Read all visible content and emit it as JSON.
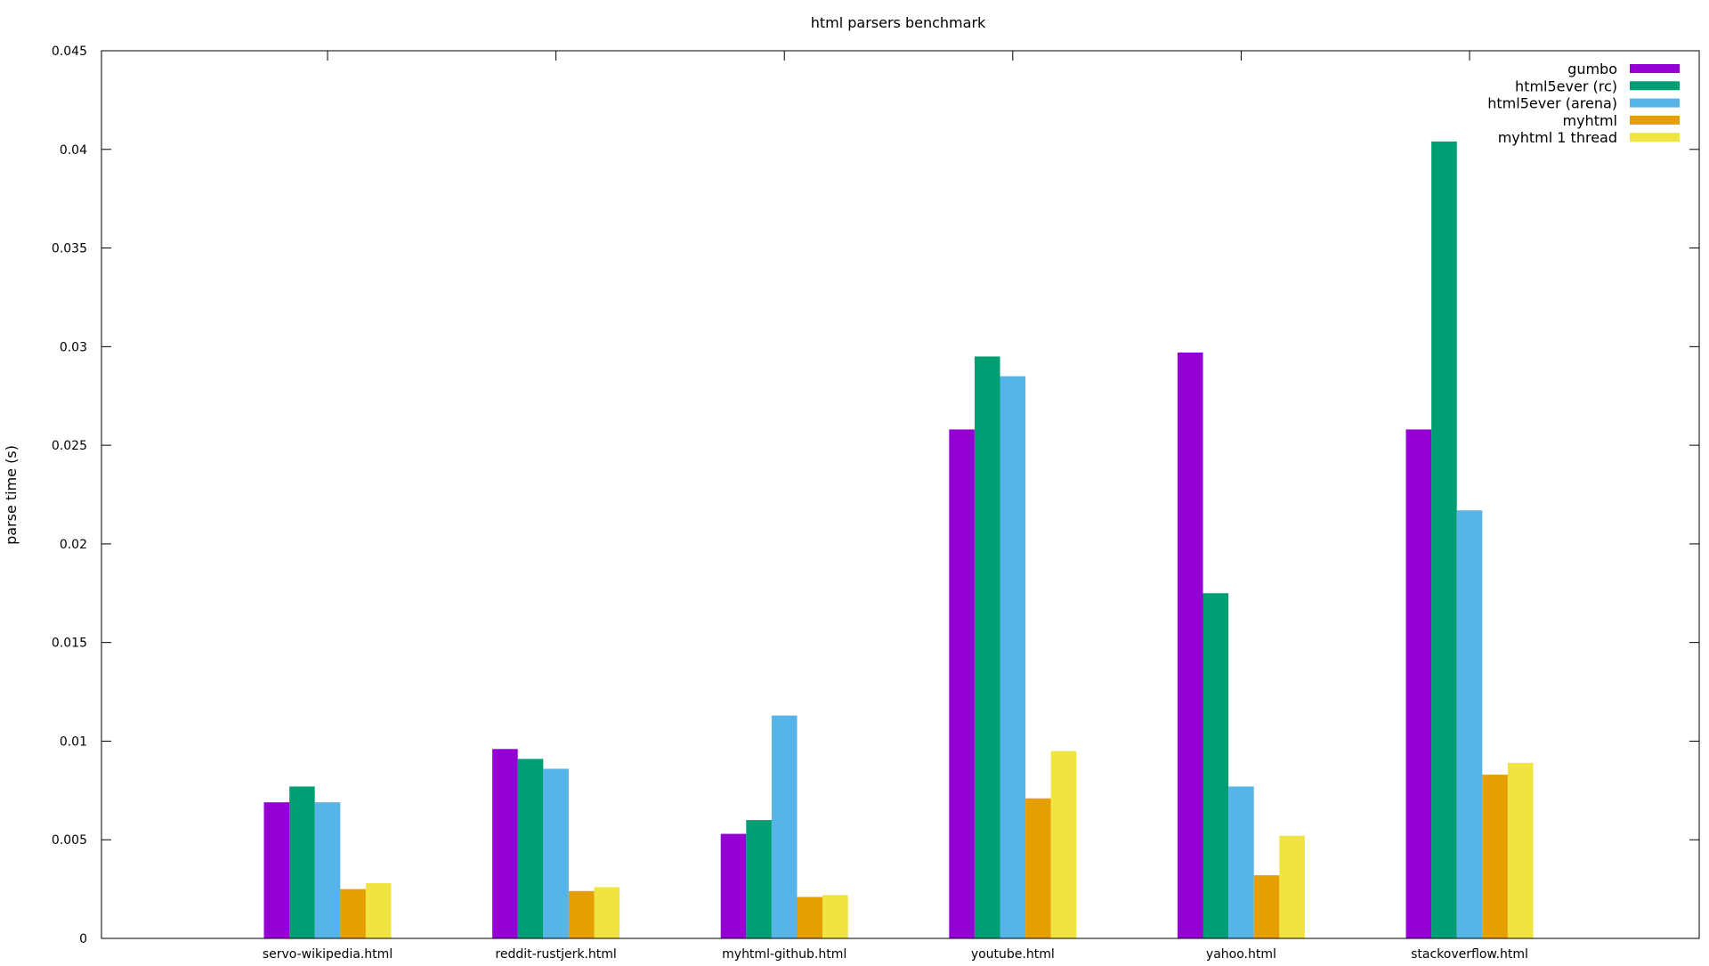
{
  "chart_data": {
    "type": "bar",
    "title": "html parsers benchmark",
    "xlabel": "",
    "ylabel": "parse time (s)",
    "ylim": [
      0,
      0.045
    ],
    "y_ticks": [
      "0",
      "0.005",
      "0.01",
      "0.015",
      "0.02",
      "0.025",
      "0.03",
      "0.035",
      "0.04",
      "0.045"
    ],
    "grid": false,
    "legend_position": "top-right",
    "categories": [
      "servo-wikipedia.html",
      "reddit-rustjerk.html",
      "myhtml-github.html",
      "youtube.html",
      "yahoo.html",
      "stackoverflow.html"
    ],
    "series": [
      {
        "name": "gumbo",
        "color": "#9400d3",
        "values": [
          0.0069,
          0.0096,
          0.0053,
          0.0258,
          0.0297,
          0.0258
        ]
      },
      {
        "name": "html5ever (rc)",
        "color": "#009e73",
        "values": [
          0.0077,
          0.0091,
          0.006,
          0.0295,
          0.0175,
          0.0404
        ]
      },
      {
        "name": "html5ever (arena)",
        "color": "#56b4e9",
        "values": [
          0.0069,
          0.0086,
          0.0113,
          0.0285,
          0.0077,
          0.0217
        ]
      },
      {
        "name": "myhtml",
        "color": "#e69f00",
        "values": [
          0.0025,
          0.0024,
          0.0021,
          0.0071,
          0.0032,
          0.0083
        ]
      },
      {
        "name": "myhtml 1 thread",
        "color": "#f0e442",
        "values": [
          0.0028,
          0.0026,
          0.0022,
          0.0095,
          0.0052,
          0.0089
        ]
      }
    ]
  }
}
